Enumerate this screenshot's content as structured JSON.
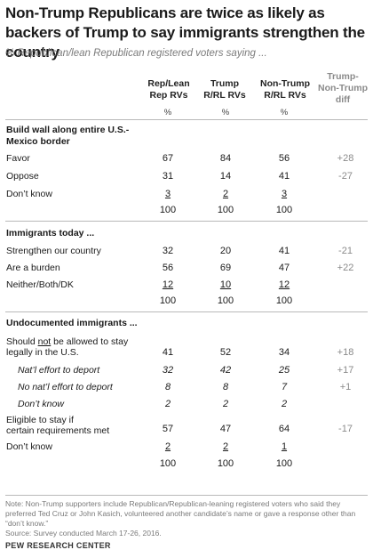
{
  "title": "Non-Trump Republicans are twice as likely as backers of Trump to say immigrants strengthen the country",
  "subtitle": "% Republican/lean Republican registered voters saying ...",
  "columns": [
    {
      "label": "Rep/Lean\nRep RVs",
      "unit": "%"
    },
    {
      "label": "Trump\nR/RL RVs",
      "unit": "%"
    },
    {
      "label": "Non-Trump\nR/RL RVs",
      "unit": "%"
    },
    {
      "label": "Trump-\nNon-Trump\ndiff",
      "unit": ""
    }
  ],
  "chart_data": {
    "type": "table",
    "sections": [
      {
        "title": "Build wall along entire U.S.-\nMexico border",
        "rows": [
          {
            "label": "Favor",
            "values": [
              "67",
              "84",
              "56"
            ],
            "diff": "+28"
          },
          {
            "label": "Oppose",
            "values": [
              "31",
              "14",
              "41"
            ],
            "diff": "-27"
          },
          {
            "label": "Don’t know",
            "values": [
              "3",
              "2",
              "3"
            ],
            "diff": ""
          },
          {
            "label": "",
            "values": [
              "100",
              "100",
              "100"
            ],
            "diff": ""
          }
        ]
      },
      {
        "title": "Immigrants today ...",
        "rows": [
          {
            "label": "Strengthen our country",
            "values": [
              "32",
              "20",
              "41"
            ],
            "diff": "-21"
          },
          {
            "label": "Are a burden",
            "values": [
              "56",
              "69",
              "47"
            ],
            "diff": "+22"
          },
          {
            "label": "Neither/Both/DK",
            "values": [
              "12",
              "10",
              "12"
            ],
            "diff": ""
          },
          {
            "label": "",
            "values": [
              "100",
              "100",
              "100"
            ],
            "diff": ""
          }
        ]
      },
      {
        "title": "Undocumented immigrants ...",
        "rows": [
          {
            "label": "Should not be allowed to stay\nlegally in the U.S.",
            "values": [
              "41",
              "52",
              "34"
            ],
            "diff": "+18"
          },
          {
            "label": "Nat’l effort to deport",
            "values": [
              "32",
              "42",
              "25"
            ],
            "diff": "+17"
          },
          {
            "label": "No nat’l effort to deport",
            "values": [
              "8",
              "8",
              "7"
            ],
            "diff": "+1"
          },
          {
            "label": "Don’t know",
            "values": [
              "2",
              "2",
              "2"
            ],
            "diff": ""
          },
          {
            "label": "Eligible to stay if\ncertain requirements met",
            "values": [
              "57",
              "47",
              "64"
            ],
            "diff": "-17"
          },
          {
            "label": "Don’t know",
            "values": [
              "2",
              "2",
              "1"
            ],
            "diff": ""
          },
          {
            "label": "",
            "values": [
              "100",
              "100",
              "100"
            ],
            "diff": ""
          }
        ]
      }
    ]
  },
  "note": "Note: Non-Trump supporters include Republican/Republican-leaning registered voters who said they preferred Ted Cruz or John Kasich, volunteered another candidate’s name or gave a response other than “don’t know.”",
  "source": "Source: Survey conducted March 17-26, 2016.",
  "brand": "PEW RESEARCH CENTER",
  "colors": {
    "text": "#1a1a1a",
    "muted": "#8a8a8a",
    "rule": "#b9b9b9"
  }
}
